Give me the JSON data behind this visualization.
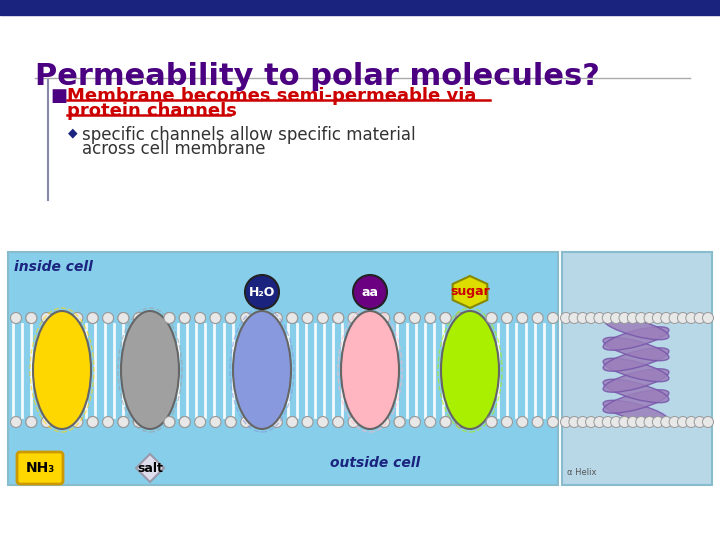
{
  "title": "Permeability to polar molecules?",
  "title_color": "#4B0082",
  "title_fontsize": 22,
  "bullet1_line1": "Membrane becomes semi-permeable via",
  "bullet1_line2": "protein channels",
  "bullet1_color": "#CC0000",
  "bullet2_line1": "specific channels allow specific material",
  "bullet2_line2": "across cell membrane",
  "bullet2_color": "#333333",
  "bg_color": "#FFFFFF",
  "top_bar_color": "#1a237e",
  "diagram_bg": "#87CEEB",
  "right_box_bg": "#B8D8E8",
  "inside_label": "inside cell",
  "outside_label": "outside cell",
  "nh3_label": "NH₃",
  "salt_label": "salt",
  "h2o_label": "H₂O",
  "aa_label": "aa",
  "sugar_label": "sugar",
  "channel_colors": [
    "#FFD700",
    "#A0A0A0",
    "#8899DD",
    "#FFB6C1",
    "#AAEE00"
  ],
  "h2o_badge_color": "#1a237e",
  "aa_badge_color": "#6B0080",
  "sugar_badge_color": "#DDDD00",
  "label_color_inside": "#1a237e",
  "label_color_outside": "#1a237e",
  "bead_color": "#E8E8E8",
  "bead_edge": "#999999",
  "tail_color": "#DDDDDD"
}
